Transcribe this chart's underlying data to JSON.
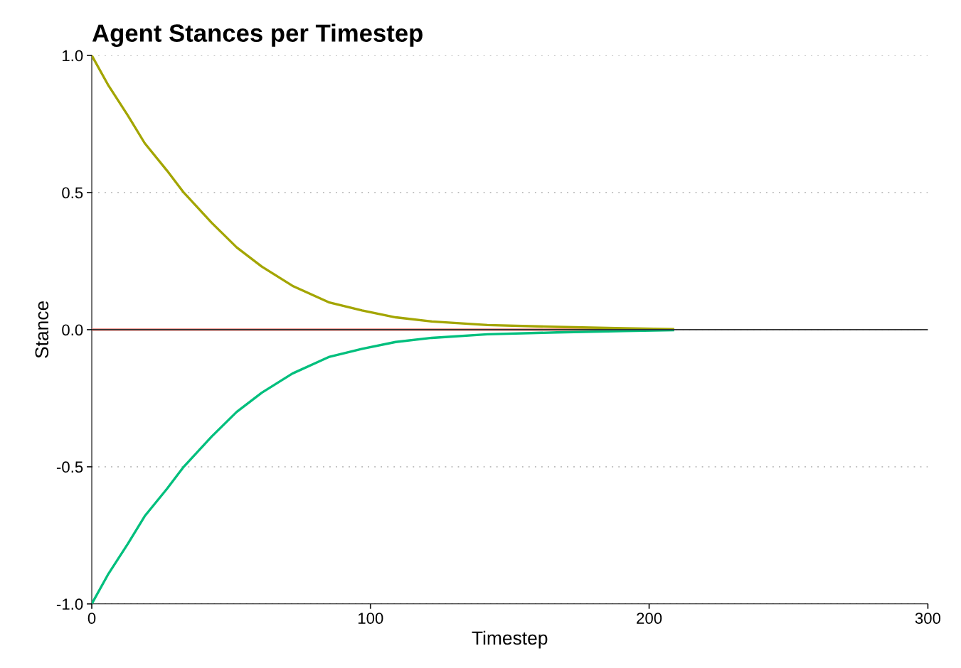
{
  "chart_data": {
    "type": "line",
    "title": "Agent Stances per Timestep",
    "xlabel": "Timestep",
    "ylabel": "Stance",
    "xlim": [
      0,
      300
    ],
    "xticks": [
      0,
      100,
      200,
      300
    ],
    "ylim": [
      -1.0,
      1.0
    ],
    "yticks": [
      {
        "value": -1.0,
        "label": "-1.0"
      },
      {
        "value": -0.5,
        "label": "-0.5"
      },
      {
        "value": 0.0,
        "label": "0.0"
      },
      {
        "value": 0.5,
        "label": "0.5"
      },
      {
        "value": 1.0,
        "label": "1.0"
      }
    ],
    "grid": "y",
    "legend": false,
    "marker": "none",
    "line_style": "solid",
    "ref_lines": [
      {
        "axis": "y",
        "value": 0,
        "label": null,
        "color": "#333333"
      }
    ],
    "series": [
      {
        "color": "#f8766d",
        "x": [
          0,
          209
        ],
        "values": [
          0,
          0
        ]
      },
      {
        "color": "#a3a500",
        "x": [
          0,
          6,
          13,
          19,
          27,
          33,
          43,
          52,
          61,
          72,
          85,
          97,
          109,
          122,
          142,
          167,
          191,
          209
        ],
        "values": [
          1.0,
          0.89,
          0.78,
          0.68,
          0.58,
          0.5,
          0.39,
          0.3,
          0.23,
          0.16,
          0.1,
          0.07,
          0.045,
          0.03,
          0.017,
          0.01,
          0.005,
          0.002
        ]
      },
      {
        "color": "#00bf7d",
        "x": [
          0,
          6,
          13,
          19,
          27,
          33,
          43,
          52,
          61,
          72,
          85,
          97,
          109,
          122,
          142,
          167,
          191,
          209
        ],
        "values": [
          -1.0,
          -0.89,
          -0.78,
          -0.68,
          -0.58,
          -0.5,
          -0.39,
          -0.3,
          -0.23,
          -0.16,
          -0.1,
          -0.07,
          -0.045,
          -0.03,
          -0.017,
          -0.01,
          -0.005,
          -0.002
        ]
      }
    ]
  }
}
